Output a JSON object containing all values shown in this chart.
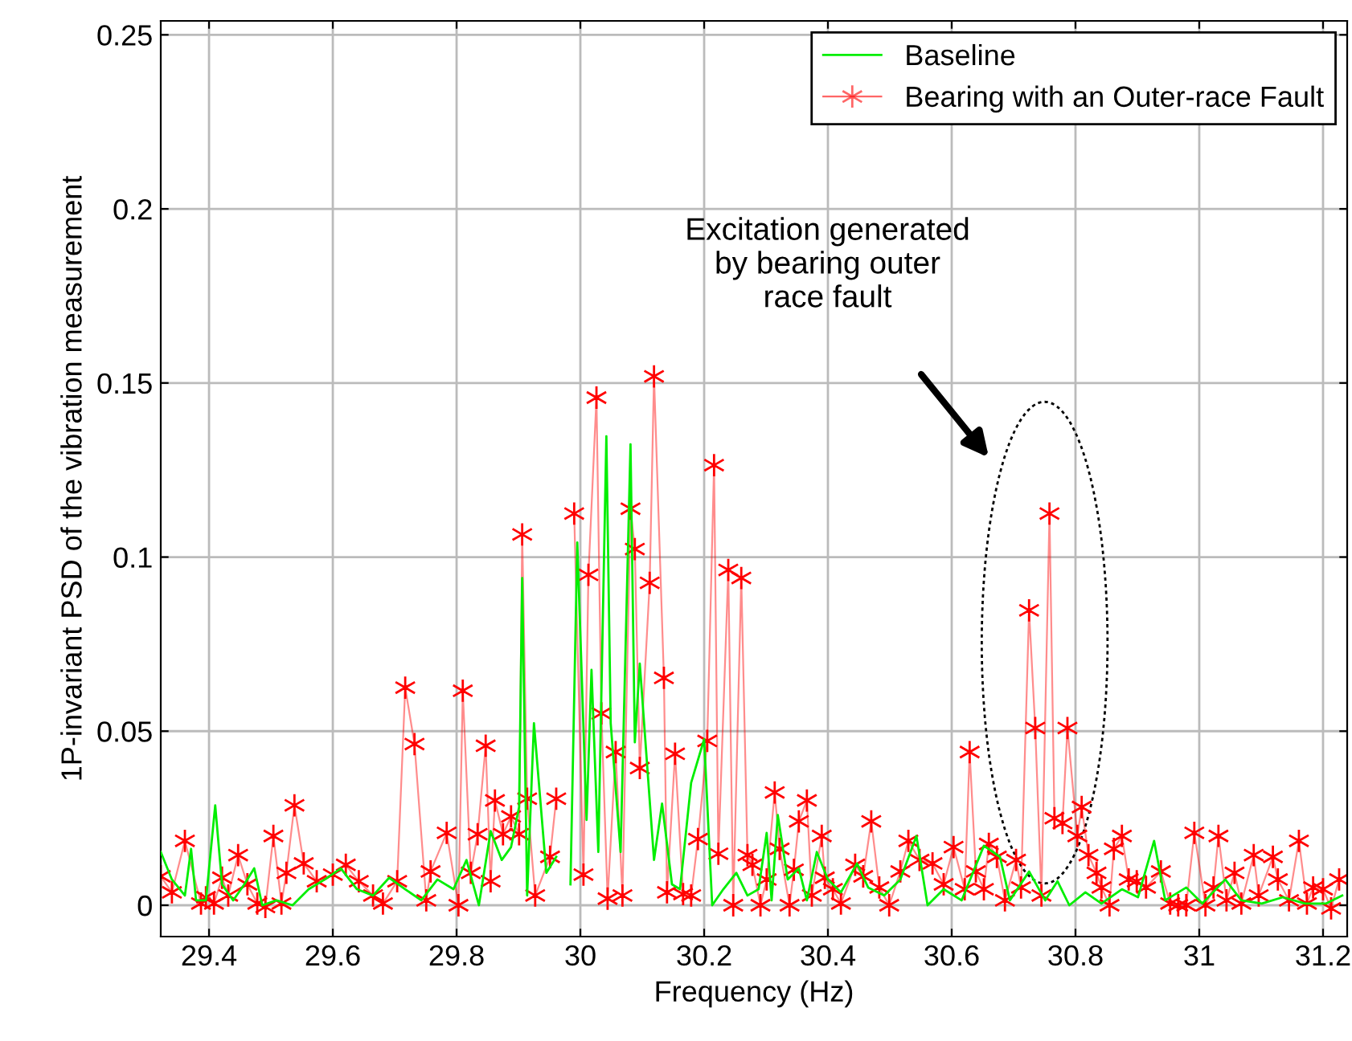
{
  "chart_data": {
    "type": "line",
    "xlabel": "Frequency (Hz)",
    "ylabel": "1P-invariant PSD of the vibration measurement",
    "xlim": [
      29.322,
      31.239
    ],
    "ylim": [
      -0.009,
      0.254
    ],
    "xticks": [
      29.4,
      29.6,
      29.8,
      30,
      30.2,
      30.4,
      30.6,
      30.8,
      31,
      31.2
    ],
    "yticks": [
      0,
      0.05,
      0.1,
      0.15,
      0.2,
      0.25
    ],
    "grid": true,
    "legend": "top right",
    "annotations": [
      "Excitation generated\nby bearing outer\nrace fault"
    ],
    "series": [
      {
        "name": "Baseline",
        "color": "#00ee00",
        "marker": "none",
        "x": [
          29.322,
          29.34,
          29.361,
          29.371,
          29.379,
          29.395,
          29.41,
          29.421,
          29.439,
          29.457,
          29.473,
          29.486,
          29.509,
          29.535,
          29.561,
          29.587,
          29.613,
          29.639,
          29.665,
          29.691,
          29.717,
          29.743,
          29.769,
          29.795,
          29.816,
          29.836,
          29.855,
          29.873,
          29.888,
          29.901,
          29.906,
          29.914,
          29.925,
          29.945,
          29.961,
          29.966,
          29.971,
          29.984,
          29.995,
          30.01,
          30.018,
          30.029,
          30.042,
          30.049,
          30.065,
          30.081,
          30.088,
          30.096,
          30.119,
          30.132,
          30.148,
          30.161,
          30.179,
          30.2,
          30.213,
          30.231,
          30.252,
          30.27,
          30.288,
          30.301,
          30.309,
          30.319,
          30.335,
          30.353,
          30.366,
          30.382,
          30.4,
          30.421,
          30.447,
          30.465,
          30.491,
          30.517,
          30.543,
          30.561,
          30.587,
          30.616,
          30.652,
          30.678,
          30.694,
          30.725,
          30.751,
          30.771,
          30.79,
          30.816,
          30.842,
          30.875,
          30.901,
          30.927,
          30.945,
          30.979,
          31.005,
          31.042,
          31.068,
          31.101,
          31.135,
          31.171,
          31.205,
          31.231
        ],
        "values": [
          0.0153,
          0.0074,
          0.0028,
          0.0162,
          0.0014,
          0.0014,
          0.0287,
          0.006,
          0.0014,
          0.006,
          0.0106,
          0.0,
          0.0014,
          0.0,
          0.0046,
          0.0074,
          0.0106,
          0.0046,
          0.0028,
          0.0079,
          0.0046,
          0.0014,
          0.0074,
          0.0046,
          0.013,
          0.0,
          0.0213,
          0.013,
          0.0167,
          0.0282,
          0.094,
          0.0028,
          0.0523,
          0.0093,
          0.0139,
          null,
          null,
          0.006,
          0.1042,
          0.0245,
          0.0676,
          0.0153,
          0.1347,
          0.0523,
          0.0153,
          0.1324,
          0.0468,
          0.0694,
          0.013,
          0.0292,
          0.006,
          0.0046,
          0.0352,
          0.0477,
          0.0,
          0.0046,
          0.0093,
          0.0028,
          0.0046,
          0.0208,
          0.0014,
          0.0259,
          0.0074,
          0.0106,
          0.0014,
          0.0153,
          0.0074,
          0.0037,
          0.012,
          0.0051,
          0.0028,
          0.0074,
          0.0199,
          0.0,
          0.0046,
          0.0014,
          0.0171,
          0.0139,
          0.0014,
          0.0097,
          0.0014,
          0.0069,
          0.0,
          0.0037,
          0.0005,
          0.0046,
          0.0023,
          0.0185,
          0.0014,
          0.0051,
          0.0005,
          0.0074,
          0.0014,
          0.0005,
          0.0023,
          0.0005,
          0.0005,
          0.0028
        ]
      },
      {
        "name": "Bearing with an Outer-race Fault",
        "color": "#ff0000",
        "marker": "cross",
        "x": [
          29.322,
          29.34,
          29.361,
          29.387,
          29.395,
          29.408,
          29.421,
          29.431,
          29.447,
          29.462,
          29.478,
          29.491,
          29.504,
          29.517,
          29.525,
          29.538,
          29.553,
          29.574,
          29.6,
          29.621,
          29.642,
          29.665,
          29.681,
          29.704,
          29.717,
          29.732,
          29.751,
          29.758,
          29.784,
          29.803,
          29.81,
          29.823,
          29.834,
          29.847,
          29.855,
          29.862,
          29.875,
          29.888,
          29.901,
          29.906,
          29.914,
          29.927,
          29.951,
          29.961,
          29.984,
          29.99,
          30.005,
          30.013,
          30.026,
          30.034,
          30.044,
          30.057,
          30.068,
          30.081,
          30.088,
          30.096,
          30.112,
          30.119,
          30.135,
          30.14,
          30.153,
          30.166,
          30.179,
          30.19,
          30.205,
          30.216,
          30.223,
          30.239,
          30.247,
          30.26,
          30.27,
          30.278,
          30.291,
          30.301,
          30.314,
          30.322,
          30.338,
          30.345,
          30.353,
          30.366,
          30.374,
          30.39,
          30.395,
          30.408,
          30.421,
          30.444,
          30.457,
          30.47,
          30.483,
          30.499,
          30.517,
          30.53,
          30.548,
          30.569,
          30.587,
          30.603,
          30.621,
          30.629,
          30.639,
          30.652,
          30.66,
          30.673,
          30.686,
          30.704,
          30.712,
          30.725,
          30.735,
          30.745,
          30.758,
          30.766,
          30.779,
          30.787,
          30.803,
          30.81,
          30.821,
          30.834,
          30.842,
          30.855,
          30.862,
          30.875,
          30.886,
          30.899,
          30.914,
          30.938,
          30.953,
          30.966,
          30.979,
          30.992,
          31.01,
          31.023,
          31.031,
          31.044,
          31.057,
          31.068,
          31.088,
          31.096,
          31.119,
          31.127,
          31.145,
          31.161,
          31.174,
          31.184,
          31.2,
          31.213,
          31.226
        ],
        "values": [
          0.0083,
          0.0037,
          0.0185,
          0.0005,
          0.0023,
          0.0005,
          0.0079,
          0.0028,
          0.0144,
          0.006,
          0.0005,
          -0.0005,
          0.0199,
          0.0005,
          0.0093,
          0.0287,
          0.012,
          0.0069,
          0.0088,
          0.0116,
          0.0069,
          0.0028,
          0.0005,
          0.0069,
          0.0625,
          0.0463,
          0.0014,
          0.0097,
          0.0208,
          0.0,
          0.0616,
          0.0093,
          0.0204,
          0.0458,
          0.0069,
          0.0301,
          0.0204,
          0.0255,
          0.0204,
          0.1065,
          0.0306,
          0.0028,
          0.0139,
          0.0306,
          null,
          0.1125,
          0.0088,
          0.0949,
          0.1458,
          0.0551,
          0.0019,
          0.044,
          0.0028,
          0.1139,
          0.1023,
          0.0394,
          0.0926,
          0.1519,
          0.0653,
          0.0037,
          0.0435,
          0.0032,
          0.0028,
          0.019,
          0.0472,
          0.1264,
          0.0148,
          0.0963,
          0.0,
          0.094,
          0.0144,
          0.0116,
          0.0,
          0.0074,
          0.0324,
          0.0162,
          0.0,
          0.0102,
          0.0241,
          0.0301,
          0.0028,
          0.0199,
          0.0079,
          0.0046,
          0.0005,
          0.0116,
          0.0083,
          0.0241,
          0.0051,
          0.0,
          0.0097,
          0.0185,
          0.013,
          0.012,
          0.006,
          0.0167,
          0.0046,
          0.044,
          0.0097,
          0.0046,
          0.0176,
          0.0139,
          0.0014,
          0.013,
          0.0051,
          0.0847,
          0.0509,
          0.0028,
          0.1125,
          0.025,
          0.0236,
          0.0509,
          0.0199,
          0.0282,
          0.0144,
          0.0093,
          0.0051,
          0.0,
          0.0162,
          0.0199,
          0.0074,
          0.0069,
          0.0051,
          0.0097,
          0.0005,
          0.0,
          0.0,
          0.0208,
          0.0,
          0.0051,
          0.0199,
          0.0014,
          0.0093,
          0.0005,
          0.0144,
          0.0028,
          0.0139,
          0.0074,
          0.0014,
          0.0185,
          0.0005,
          0.0051,
          0.0046,
          -0.0009,
          0.0074
        ]
      }
    ]
  }
}
